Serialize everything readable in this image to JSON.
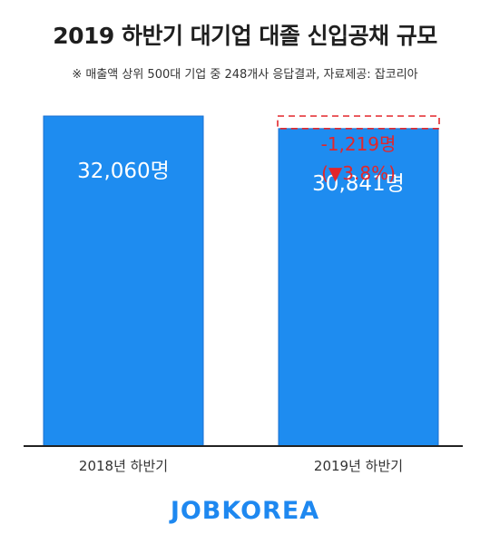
{
  "title": "2019 하반기 대기업 대졸 신입공채 규모",
  "subtitle": "※ 매출액 상위 500대 기업 중 248개사 응답결과,  자료제공: 잡코리아",
  "logo": "JOBKOREA",
  "colors": {
    "bar": "#1e8cf0",
    "decrease": "#e3262b",
    "axis": "#222222",
    "text": "#333333"
  },
  "chart_data": {
    "type": "bar",
    "categories": [
      "2018년 하반기",
      "2019년 하반기"
    ],
    "values": [
      32060,
      30841
    ],
    "value_labels": [
      "32,060명",
      "30,841명"
    ],
    "unit": "명",
    "ylim": [
      0,
      32060
    ],
    "grid": false,
    "annotation": {
      "category": "2019년 하반기",
      "from": 32060,
      "to": 30841,
      "change_label": "-1,219명",
      "percent_label": "(▼3.8%)"
    }
  }
}
